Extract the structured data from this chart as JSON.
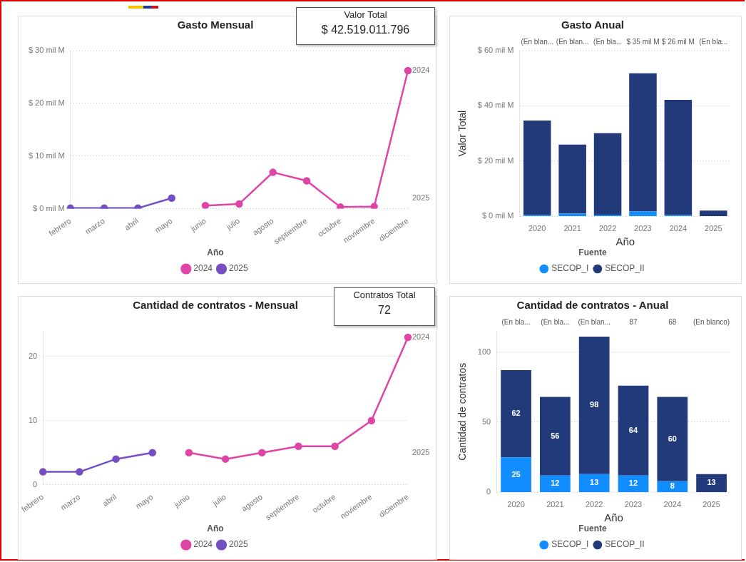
{
  "chart_data": [
    {
      "type": "line",
      "title": "Gasto Mensual",
      "categories": [
        "febrero",
        "marzo",
        "abril",
        "mayo",
        "junio",
        "julio",
        "agosto",
        "septiembre",
        "octubre",
        "noviembre",
        "diciembre"
      ],
      "series": [
        {
          "name": "2024",
          "color": "#e044a7",
          "values": [
            null,
            null,
            null,
            null,
            0.6,
            0.9,
            6.9,
            5.3,
            0.3,
            0.4,
            26.2
          ]
        },
        {
          "name": "2025",
          "color": "#744ec2",
          "values": [
            0.1,
            0.1,
            0.1,
            2.0,
            null,
            null,
            null,
            null,
            null,
            null,
            null
          ]
        }
      ],
      "ylim": [
        0,
        30
      ],
      "yticks": [
        {
          "value": 0,
          "label": "$ 0 mil M"
        },
        {
          "value": 10,
          "label": "$ 10 mil M"
        },
        {
          "value": 20,
          "label": "$ 20 mil M"
        },
        {
          "value": 30,
          "label": "$ 30 mil M"
        }
      ],
      "grid": "y",
      "legend": "bottom",
      "legend_title": "Año",
      "marker": "circle",
      "line_style": "solid"
    },
    {
      "type": "other",
      "title": "Valor Total",
      "annotations": [
        "$ 42.519.011.796"
      ]
    },
    {
      "type": "bar",
      "title": "Gasto Anual",
      "categories": [
        "2020",
        "2021",
        "2022",
        "2023",
        "2024",
        "2025"
      ],
      "stacked": true,
      "series": [
        {
          "name": "SECOP_I",
          "color": "#118dff",
          "values": [
            0.5,
            1.0,
            0.6,
            1.8,
            0.5,
            null
          ]
        },
        {
          "name": "SECOP_II",
          "color": "#223a7a",
          "values": [
            34.2,
            25.0,
            29.5,
            50.0,
            41.7,
            2.1
          ]
        }
      ],
      "annotations": [
        "(En blan...",
        "(En blan...",
        "(En bla...",
        "$ 35 mil M",
        "$ 26 mil M",
        "(En bla..."
      ],
      "xlabel": "Año",
      "ylabel": "Valor Total",
      "ylim": [
        0,
        60
      ],
      "yticks": [
        {
          "value": 0,
          "label": "$ 0 mil M"
        },
        {
          "value": 20,
          "label": "$ 20 mil M"
        },
        {
          "value": 40,
          "label": "$ 40 mil M"
        },
        {
          "value": 60,
          "label": "$ 60 mil M"
        }
      ],
      "grid": "y",
      "legend": "bottom",
      "legend_title": "Fuente"
    },
    {
      "type": "line",
      "title": "Cantidad de contratos - Mensual",
      "categories": [
        "febrero",
        "marzo",
        "abril",
        "mayo",
        "junio",
        "julio",
        "agosto",
        "septiembre",
        "octubre",
        "noviembre",
        "diciembre"
      ],
      "series": [
        {
          "name": "2024",
          "color": "#e044a7",
          "values": [
            null,
            null,
            null,
            null,
            5,
            4,
            5,
            6,
            6,
            10,
            23
          ]
        },
        {
          "name": "2025",
          "color": "#744ec2",
          "values": [
            2,
            2,
            4,
            5,
            null,
            null,
            null,
            null,
            null,
            null,
            null
          ]
        }
      ],
      "ylim": [
        0,
        24
      ],
      "yticks": [
        0,
        10,
        20
      ],
      "grid": "y",
      "legend": "bottom",
      "legend_title": "Año",
      "marker": "circle",
      "line_style": "solid"
    },
    {
      "type": "other",
      "title": "Contratos Total",
      "annotations": [
        "72"
      ]
    },
    {
      "type": "bar",
      "title": "Cantidad de contratos - Anual",
      "categories": [
        "2020",
        "2021",
        "2022",
        "2023",
        "2024",
        "2025"
      ],
      "stacked": true,
      "series": [
        {
          "name": "SECOP_I",
          "color": "#118dff",
          "values": [
            25,
            12,
            13,
            12,
            8,
            null
          ]
        },
        {
          "name": "SECOP_II",
          "color": "#223a7a",
          "values": [
            62,
            56,
            98,
            64,
            60,
            13
          ]
        }
      ],
      "annotations": [
        "(En bla...",
        "(En bla...",
        "(En blan...",
        "87",
        "68",
        "(En blanco)"
      ],
      "data_labels": true,
      "xlabel": "Año",
      "ylabel": "Cantidad de contratos",
      "ylim": [
        0,
        115
      ],
      "yticks": [
        0,
        50,
        100
      ],
      "grid": "y",
      "legend": "bottom",
      "legend_title": "Fuente"
    }
  ]
}
